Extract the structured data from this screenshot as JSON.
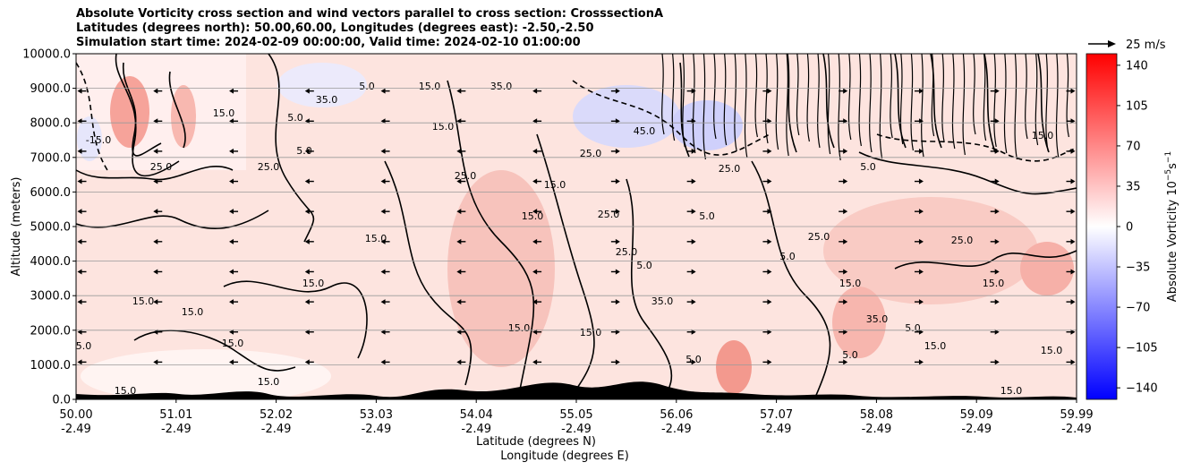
{
  "chart_data": {
    "type": "heatmap",
    "title_lines": [
      "Absolute Vorticity cross section and wind vectors parallel to cross section: CrosssectionA",
      "Latitudes (degrees north): 50.00,60.00, Longitudes (degrees east): -2.50,-2.50",
      "Simulation start time: 2024-02-09 00:00:00, Valid time: 2024-02-10 01:00:00"
    ],
    "ylabel": "Altitude (meters)",
    "xlabel_lat": "Latitude (degrees N)",
    "xlabel_lon": "Longitude (degrees E)",
    "ylim": [
      0,
      10000
    ],
    "yticks": [
      "0.0",
      "1000.0",
      "2000.0",
      "3000.0",
      "4000.0",
      "5000.0",
      "6000.0",
      "7000.0",
      "8000.0",
      "9000.0",
      "10000.0"
    ],
    "xticks_lat": [
      "50.00",
      "51.01",
      "52.02",
      "53.03",
      "54.04",
      "55.05",
      "56.06",
      "57.07",
      "58.08",
      "59.09",
      "59.99"
    ],
    "xticks_lon": [
      "-2.49",
      "-2.49",
      "-2.49",
      "-2.49",
      "-2.49",
      "-2.49",
      "-2.49",
      "-2.49",
      "-2.49",
      "-2.49",
      "-2.49"
    ],
    "grid": true,
    "colorbar": {
      "label": "Absolute Vorticity 10",
      "label_exp": "−5",
      "label_unit": "s",
      "label_unit_exp": "−1",
      "range": [
        -150,
        150
      ],
      "ticks": [
        "140",
        "105",
        "70",
        "35",
        "0",
        "−35",
        "−70",
        "−105",
        "−140"
      ],
      "colors": {
        "low": "#0000ff",
        "mid": "#ffffff",
        "high": "#ff0000"
      }
    },
    "quiver_key": "25 m/s",
    "contour_labels": [
      "-15.0",
      "5.0",
      "15.0",
      "25.0",
      "35.0",
      "45.0"
    ]
  }
}
